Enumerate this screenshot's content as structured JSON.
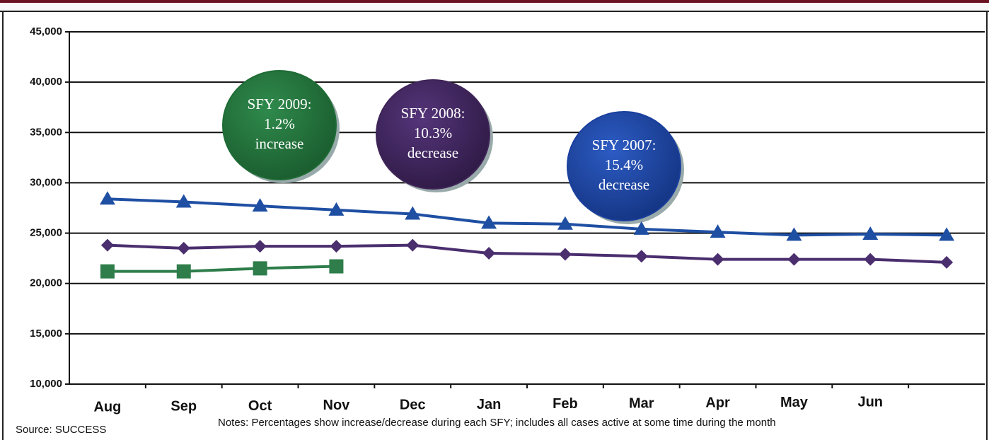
{
  "chart_data": {
    "type": "line",
    "categories": [
      "Aug",
      "Sep",
      "Oct",
      "Nov",
      "Dec",
      "Jan",
      "Feb",
      "Mar",
      "Apr",
      "May",
      "Jun",
      null
    ],
    "series": [
      {
        "color": "#1f4fa3",
        "marker": "triangle",
        "values": [
          28400,
          28100,
          27700,
          27300,
          26900,
          26000,
          25900,
          25400,
          25100,
          24800,
          24900,
          24800
        ]
      },
      {
        "color": "#4a2e6e",
        "marker": "diamond",
        "values": [
          23800,
          23500,
          23700,
          23700,
          23800,
          23000,
          22900,
          22700,
          22400,
          22400,
          22400,
          22100
        ]
      },
      {
        "color": "#2e7d4a",
        "marker": "square",
        "values": [
          21200,
          21200,
          21500,
          21700,
          null,
          null,
          null,
          null,
          null,
          null,
          null,
          null
        ]
      }
    ],
    "ylim": [
      10000,
      45000
    ],
    "yticks": [
      {
        "value": 10000,
        "label": "10,000"
      },
      {
        "value": 15000,
        "label": "15,000"
      },
      {
        "value": 20000,
        "label": "20,000"
      },
      {
        "value": 25000,
        "label": "25,000"
      },
      {
        "value": 30000,
        "label": "30,000"
      },
      {
        "value": 35000,
        "label": "35,000"
      },
      {
        "value": 40000,
        "label": "40,000"
      },
      {
        "value": 45000,
        "label": "45,000"
      }
    ],
    "grid": true,
    "annotations": [
      {
        "lines": [
          "SFY 2009:",
          "1.2%",
          "increase"
        ],
        "color": "#1e6b35"
      },
      {
        "lines": [
          "SFY 2008:",
          "10.3%",
          "decrease"
        ],
        "color": "#3f2458"
      },
      {
        "lines": [
          "SFY 2007:",
          "15.4%",
          "decrease"
        ],
        "color": "#1a3f9e"
      }
    ],
    "source": "Source: SUCCESS",
    "notes": "Notes: Percentages show increase/decrease during each SFY;  includes all cases active at some time during  the month"
  }
}
